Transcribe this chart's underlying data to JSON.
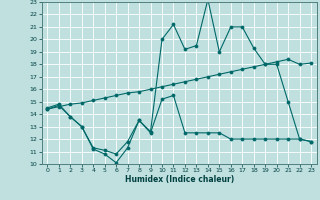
{
  "xlabel": "Humidex (Indice chaleur)",
  "bg_color": "#c0e0e0",
  "grid_color": "#ffffff",
  "line_color": "#006868",
  "xlim": [
    -0.5,
    23.5
  ],
  "ylim": [
    10,
    23
  ],
  "xticks": [
    0,
    1,
    2,
    3,
    4,
    5,
    6,
    7,
    8,
    9,
    10,
    11,
    12,
    13,
    14,
    15,
    16,
    17,
    18,
    19,
    20,
    21,
    22,
    23
  ],
  "yticks": [
    10,
    11,
    12,
    13,
    14,
    15,
    16,
    17,
    18,
    19,
    20,
    21,
    22,
    23
  ],
  "line1_x": [
    0,
    1,
    2,
    3,
    4,
    5,
    6,
    7,
    8,
    9,
    10,
    11,
    12,
    13,
    14,
    15,
    16,
    17,
    18,
    19,
    20,
    21,
    22,
    23
  ],
  "line1_y": [
    14.5,
    14.8,
    13.8,
    13.0,
    11.2,
    10.8,
    10.1,
    11.3,
    13.5,
    12.6,
    20.0,
    21.2,
    19.2,
    19.5,
    23.2,
    19.0,
    21.0,
    21.0,
    19.3,
    18.0,
    18.0,
    15.0,
    12.0,
    11.8
  ],
  "line2_x": [
    0,
    1,
    2,
    3,
    4,
    5,
    6,
    7,
    8,
    9,
    10,
    11,
    12,
    13,
    14,
    15,
    16,
    17,
    18,
    19,
    20,
    21,
    22,
    23
  ],
  "line2_y": [
    14.4,
    14.6,
    14.8,
    14.9,
    15.1,
    15.3,
    15.5,
    15.7,
    15.8,
    16.0,
    16.2,
    16.4,
    16.6,
    16.8,
    17.0,
    17.2,
    17.4,
    17.6,
    17.8,
    18.0,
    18.2,
    18.4,
    18.0,
    18.1
  ],
  "line3_x": [
    0,
    1,
    2,
    3,
    4,
    5,
    6,
    7,
    8,
    9,
    10,
    11,
    12,
    13,
    14,
    15,
    16,
    17,
    18,
    19,
    20,
    21,
    22,
    23
  ],
  "line3_y": [
    14.4,
    14.7,
    13.8,
    13.0,
    11.3,
    11.1,
    10.8,
    11.8,
    13.5,
    12.5,
    15.2,
    15.5,
    12.5,
    12.5,
    12.5,
    12.5,
    12.0,
    12.0,
    12.0,
    12.0,
    12.0,
    12.0,
    12.0,
    11.8
  ]
}
